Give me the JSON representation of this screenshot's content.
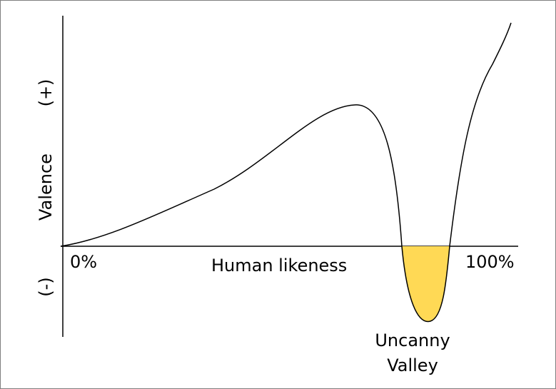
{
  "axes": {
    "y_positive": "(+)",
    "y_label": "Valence",
    "y_negative": "(-)",
    "x_start": "0%",
    "x_label": "Human likeness",
    "x_end": "100%"
  },
  "annotation": {
    "lines": [
      "Uncanny",
      "Valley"
    ]
  }
}
